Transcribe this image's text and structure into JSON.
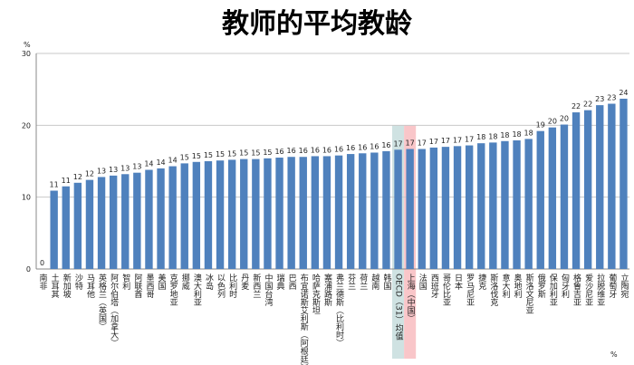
{
  "chart_data": {
    "type": "bar",
    "title": "教师的平均教龄",
    "y_unit": "%",
    "x_unit": "%",
    "categories": [
      "南非",
      "土耳其",
      "新加坡",
      "沙特",
      "马耳他",
      "英格兰（英国）",
      "阿尔伯塔（加拿大）",
      "智利",
      "阿联酋",
      "墨西哥",
      "美国",
      "克罗地亚",
      "挪威",
      "澳大利亚",
      "冰岛",
      "以色列",
      "比利时",
      "丹麦",
      "新西兰",
      "中国台湾",
      "瑞典",
      "巴西",
      "布宜诺斯艾利斯（阿根廷）",
      "哈萨克斯坦",
      "塞浦路斯",
      "弗兰德斯（比利时）",
      "芬兰",
      "荷兰",
      "越南",
      "韩国",
      "OECD（31）均值",
      "上海（中国）",
      "法国",
      "西班牙",
      "哥伦比亚",
      "日本",
      "罗马尼亚",
      "捷克",
      "斯洛伐克",
      "意大利",
      "奥地利",
      "斯洛文尼亚",
      "俄罗斯",
      "保加利亚",
      "匈牙利",
      "格鲁吉亚",
      "爱沙尼亚",
      "拉脱维亚",
      "葡萄牙",
      "立陶宛"
    ],
    "values": [
      0,
      10.9,
      11.5,
      12.0,
      12.4,
      12.8,
      13.0,
      13.2,
      13.4,
      13.8,
      14.0,
      14.3,
      14.7,
      14.9,
      15.0,
      15.1,
      15.2,
      15.3,
      15.3,
      15.4,
      15.5,
      15.6,
      15.6,
      15.7,
      15.7,
      15.8,
      16.0,
      16.1,
      16.2,
      16.4,
      16.6,
      16.7,
      16.7,
      16.9,
      17.0,
      17.1,
      17.2,
      17.5,
      17.6,
      17.8,
      17.9,
      18.1,
      19.2,
      19.7,
      20.1,
      21.8,
      22.1,
      22.8,
      23.0,
      23.7
    ],
    "value_labels": [
      "0",
      "11",
      "11",
      "12",
      "12",
      "13",
      "13",
      "13",
      "13",
      "14",
      "14",
      "14",
      "15",
      "15",
      "15",
      "15",
      "15",
      "15",
      "15",
      "15",
      "16",
      "16",
      "16",
      "16",
      "16",
      "16",
      "16",
      "16",
      "16",
      "16",
      "17",
      "17",
      "17",
      "17",
      "17",
      "17",
      "17",
      "18",
      "18",
      "18",
      "18",
      "18",
      "19",
      "20",
      "20",
      "22",
      "22",
      "23",
      "23",
      "24"
    ],
    "color": "#4f81bd",
    "highlights": [
      {
        "category": "OECD（31）均值",
        "color": "#cfe2e2"
      },
      {
        "category": "上海（中国）",
        "color": "#f9c6c9"
      }
    ],
    "ylim": [
      0,
      30
    ],
    "yticks": [
      0,
      10,
      20,
      30
    ],
    "grid": true
  }
}
